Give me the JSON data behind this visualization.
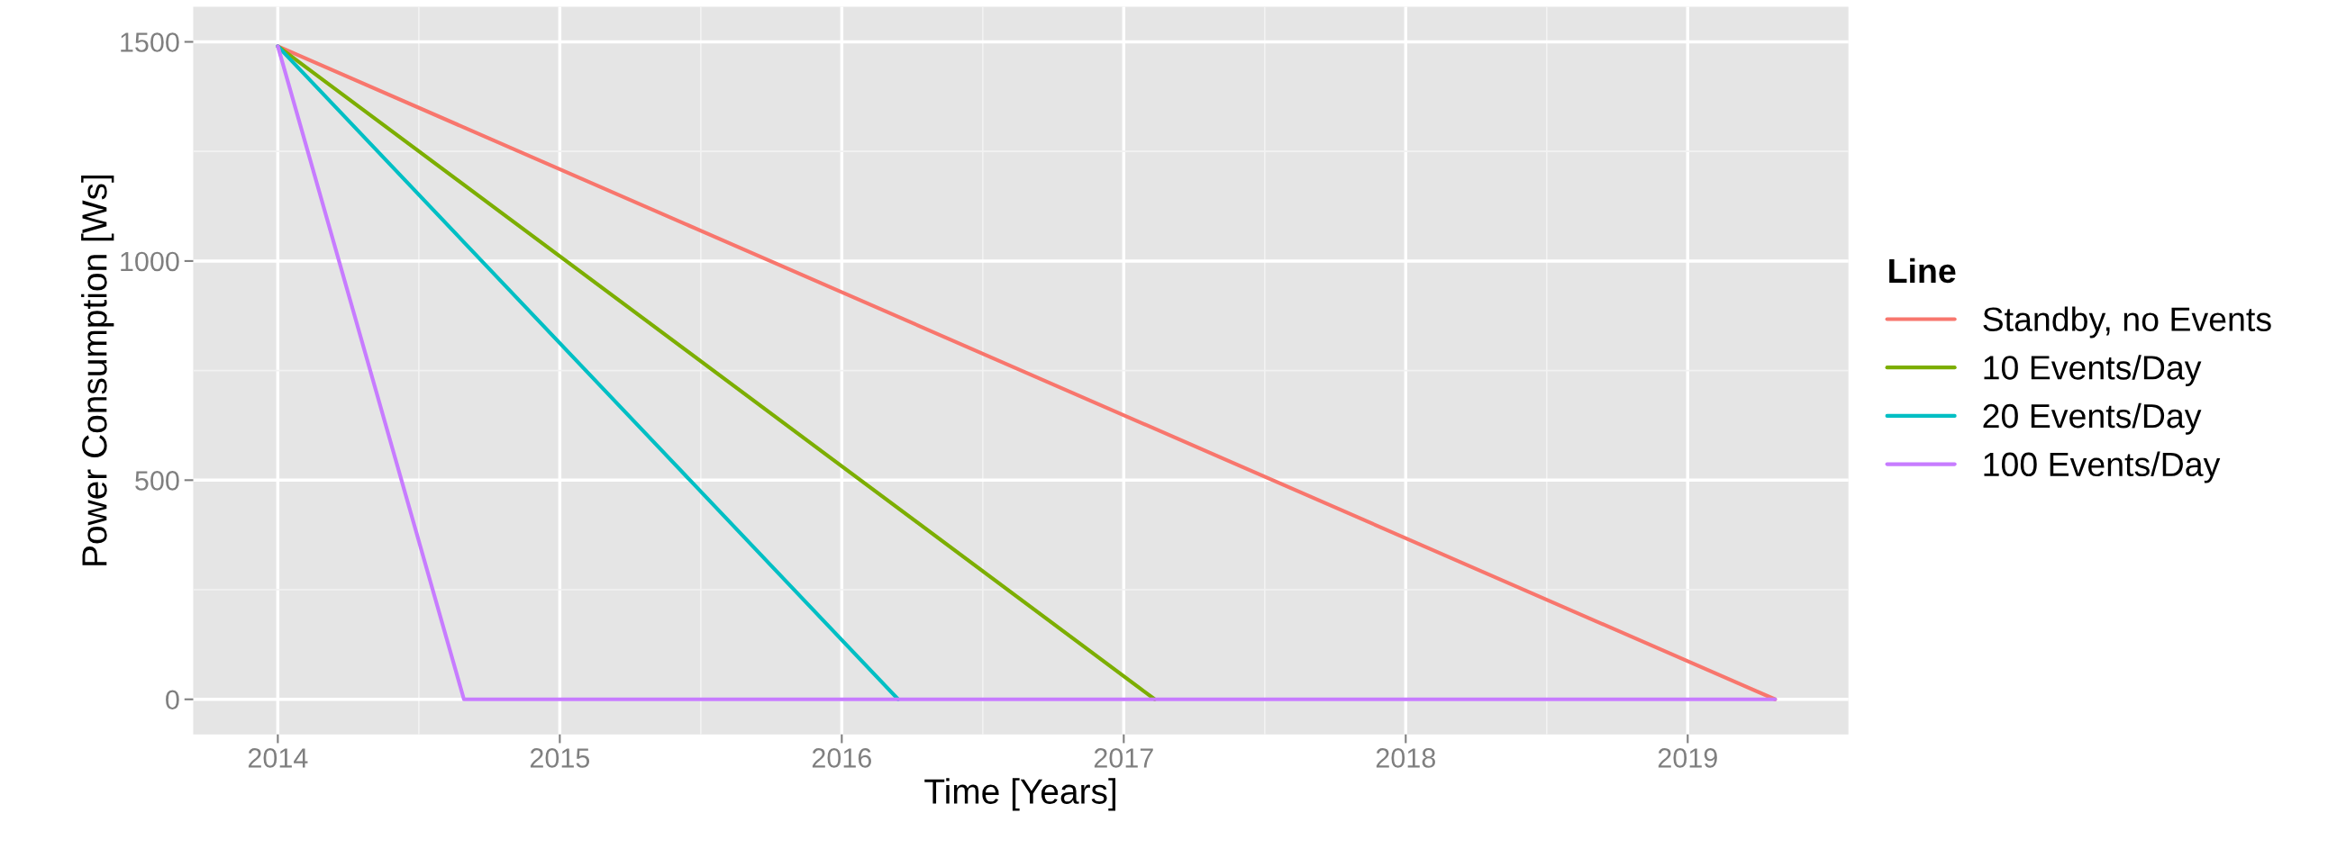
{
  "chart_data": {
    "type": "line",
    "xlabel": "Time [Years]",
    "ylabel": "Power Consumption [Ws]",
    "legend_title": "Line",
    "series": [
      {
        "name": "Standby, no Events",
        "color": "#f8766d",
        "x": [
          2014,
          2019.31
        ],
        "values": [
          1490,
          0
        ]
      },
      {
        "name": "10 Events/Day",
        "color": "#7cae00",
        "x": [
          2014,
          2017.11
        ],
        "values": [
          1490,
          0
        ]
      },
      {
        "name": "20 Events/Day",
        "color": "#00bfc4",
        "x": [
          2014,
          2016.2
        ],
        "values": [
          1490,
          0
        ]
      },
      {
        "name": "100 Events/Day",
        "color": "#c77cff",
        "x": [
          2014,
          2014.66,
          2019.31
        ],
        "values": [
          1490,
          0,
          0
        ]
      }
    ],
    "xlim": [
      2013.7,
      2019.57
    ],
    "ylim": [
      -80,
      1580
    ],
    "xticks": [
      2014,
      2015,
      2016,
      2017,
      2018,
      2019
    ],
    "yticks": [
      0,
      500,
      1000,
      1500
    ],
    "grid": true,
    "legend": "right",
    "line_style": "solid",
    "marker": "none"
  }
}
